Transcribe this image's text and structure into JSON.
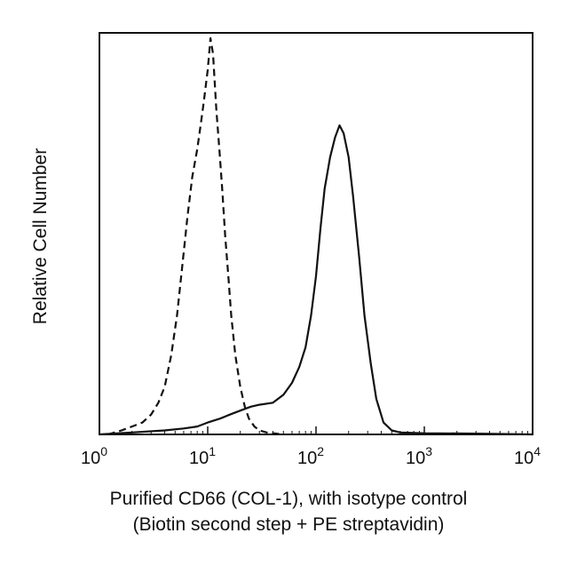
{
  "chart_data": {
    "type": "line",
    "title": "",
    "xlabel_line1": "Purified CD66 (COL-1), with isotype control",
    "xlabel_line2": "(Biotin second step + PE streptavidin)",
    "ylabel": "Relative Cell Number",
    "xscale": "log",
    "xlim": [
      1,
      10000
    ],
    "ylim": [
      0,
      100
    ],
    "xticks": [
      {
        "base": "10",
        "exp": "0",
        "value": 1
      },
      {
        "base": "10",
        "exp": "1",
        "value": 10
      },
      {
        "base": "10",
        "exp": "2",
        "value": 100
      },
      {
        "base": "10",
        "exp": "3",
        "value": 1000
      },
      {
        "base": "10",
        "exp": "4",
        "value": 10000
      }
    ],
    "grid": false,
    "legend": "none",
    "series": [
      {
        "style": "dashed",
        "color": "#111111",
        "x": [
          1.2,
          1.6,
          2.0,
          2.5,
          3.0,
          3.5,
          4.0,
          4.6,
          5.2,
          5.8,
          6.5,
          7.2,
          8.0,
          8.6,
          9.2,
          10.0,
          10.6,
          11.2,
          12.0,
          12.8,
          13.6,
          14.5,
          15.5,
          16.5,
          18.0,
          20.0,
          22.0,
          24.0,
          27.0,
          30.0,
          35.0,
          40.0,
          50.0
        ],
        "y": [
          0,
          1,
          2,
          3,
          5,
          8,
          12,
          20,
          30,
          42,
          55,
          65,
          72,
          78,
          84,
          92,
          100,
          96,
          82,
          72,
          62,
          50,
          40,
          30,
          20,
          12,
          7,
          4,
          2,
          1,
          0.5,
          0.3,
          0
        ]
      },
      {
        "style": "solid",
        "color": "#111111",
        "x": [
          1.0,
          2.0,
          4.0,
          6.0,
          8.0,
          10.0,
          13.0,
          16.0,
          20.0,
          25.0,
          30.0,
          40.0,
          50.0,
          60.0,
          70.0,
          80.0,
          90.0,
          100.0,
          110.0,
          120.0,
          135.0,
          150.0,
          165.0,
          180.0,
          200.0,
          220.0,
          250.0,
          280.0,
          320.0,
          360.0,
          420.0,
          500.0,
          600.0,
          1000.0,
          3000.0,
          10000.0
        ],
        "y": [
          0,
          0.5,
          1,
          1.5,
          2,
          3,
          4,
          5,
          6,
          7,
          7.5,
          8,
          10,
          13,
          17,
          22,
          30,
          40,
          52,
          62,
          70,
          75,
          78,
          76,
          70,
          60,
          45,
          30,
          18,
          9,
          3,
          1,
          0.5,
          0.3,
          0.2,
          0
        ]
      }
    ]
  }
}
